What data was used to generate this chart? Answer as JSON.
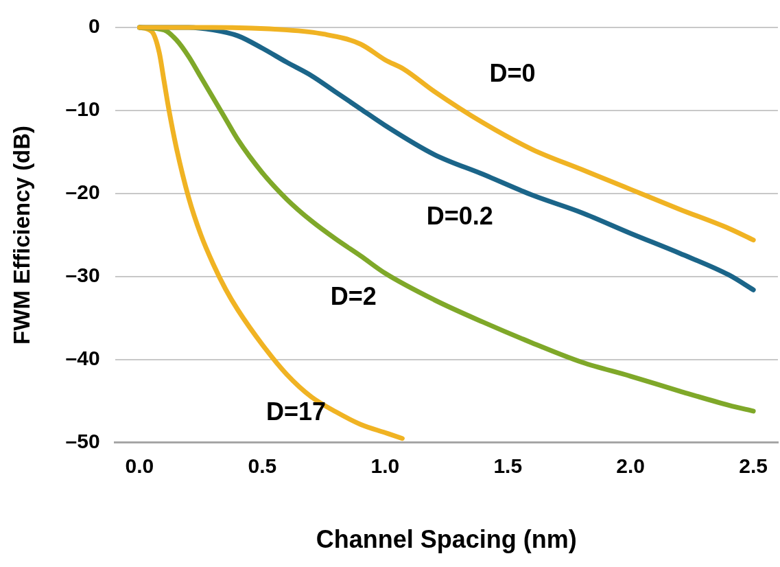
{
  "chart_data": {
    "type": "line",
    "xlabel": "Channel Spacing (nm)",
    "ylabel": "FWM Efficiency (dB)",
    "xlim": [
      -0.1,
      2.6
    ],
    "ylim": [
      -50,
      0
    ],
    "xticks": [
      {
        "value": 0,
        "label": "0.0"
      },
      0.5,
      {
        "value": 1,
        "label": "1.0"
      },
      1.5,
      {
        "value": 2,
        "label": "2.0"
      },
      2.5
    ],
    "yticks": [
      0,
      {
        "value": -10,
        "label": "–10"
      },
      {
        "value": -20,
        "label": "–20"
      },
      {
        "value": -30,
        "label": "–30"
      },
      {
        "value": -40,
        "label": "–40"
      },
      {
        "value": -50,
        "label": "–50"
      }
    ],
    "grid": "y",
    "legend": false,
    "marker": "none",
    "line_style": "solid",
    "series": [
      {
        "name": "D=0",
        "color": "#f0b323",
        "x": [
          0,
          0.3,
          0.6,
          0.75,
          0.9,
          1.0,
          1.075,
          1.2,
          1.4,
          1.6,
          1.8,
          2.0,
          2.2,
          2.4,
          2.5
        ],
        "values": [
          0,
          0,
          -0.3,
          -0.8,
          -2,
          -3.9,
          -5,
          -7.7,
          -11.5,
          -14.7,
          -17.1,
          -19.5,
          -21.9,
          -24.2,
          -25.6
        ]
      },
      {
        "name": "D=0.2",
        "color": "#1b6589",
        "x": [
          0,
          0.2,
          0.3,
          0.4,
          0.5,
          0.6,
          0.7,
          0.8,
          0.9,
          1.0,
          1.2,
          1.4,
          1.6,
          1.8,
          2.0,
          2.2,
          2.4,
          2.5
        ],
        "values": [
          0,
          0,
          -0.3,
          -1,
          -2.5,
          -4.2,
          -5.8,
          -7.8,
          -9.8,
          -11.8,
          -15.3,
          -17.7,
          -20.2,
          -22.3,
          -24.8,
          -27.2,
          -29.8,
          -31.6
        ]
      },
      {
        "name": "D=2",
        "color": "#7fa829",
        "x": [
          0,
          0.1,
          0.15,
          0.2,
          0.25,
          0.3,
          0.35,
          0.4,
          0.5,
          0.6,
          0.7,
          0.8,
          0.9,
          1.0,
          1.2,
          1.4,
          1.6,
          1.8,
          2.0,
          2.2,
          2.4,
          2.5
        ],
        "values": [
          0,
          -0.3,
          -1.5,
          -3.5,
          -6,
          -8.5,
          -11,
          -13.5,
          -17.5,
          -20.7,
          -23.3,
          -25.5,
          -27.5,
          -29.6,
          -32.8,
          -35.5,
          -38,
          -40.3,
          -42,
          -43.8,
          -45.5,
          -46.2
        ]
      },
      {
        "name": "D=17",
        "color": "#f0b323",
        "x": [
          0,
          0.05,
          0.08,
          0.1,
          0.12,
          0.15,
          0.2,
          0.25,
          0.3,
          0.35,
          0.4,
          0.5,
          0.6,
          0.7,
          0.8,
          0.9,
          1.0,
          1.07
        ],
        "values": [
          0,
          -0.5,
          -3,
          -6.5,
          -10,
          -14.5,
          -20.5,
          -25,
          -28.5,
          -31.5,
          -34,
          -38.2,
          -41.8,
          -44.5,
          -46.3,
          -47.8,
          -48.8,
          -49.5
        ]
      }
    ]
  }
}
